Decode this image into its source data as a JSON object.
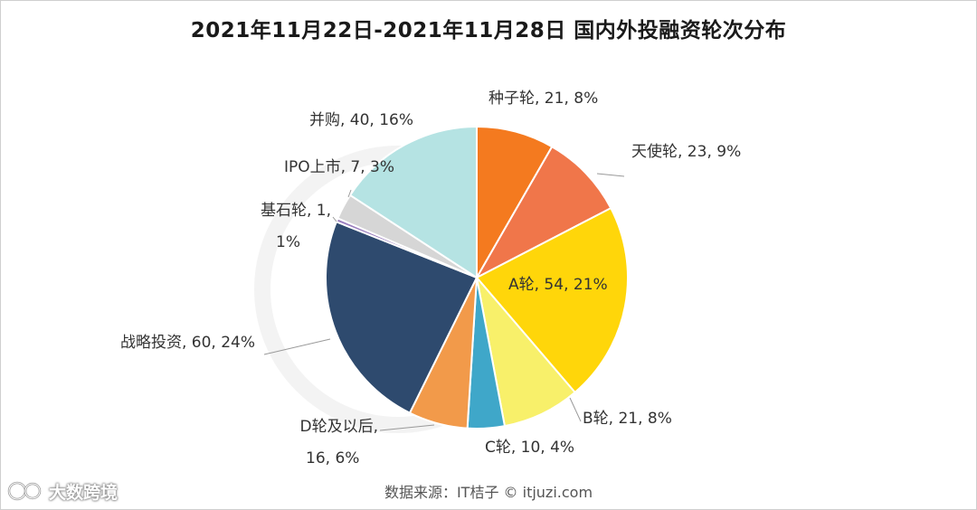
{
  "chart_data": {
    "type": "pie",
    "title": "2021年11月22日-2021年11月28日 国内外投融资轮次分布",
    "slices": [
      {
        "label": "种子轮, 21, 8%",
        "value": 21,
        "color": "#F47A1F"
      },
      {
        "label": "天使轮, 23, 9%",
        "value": 23,
        "color": "#F0764A"
      },
      {
        "label": "A轮, 54, 21%",
        "value": 54,
        "color": "#FFD60A"
      },
      {
        "label": "B轮, 21, 8%",
        "value": 21,
        "color": "#F8F06A"
      },
      {
        "label": "C轮, 10, 4%",
        "value": 10,
        "color": "#3FA7C9"
      },
      {
        "label": "D轮及以后,\n16, 6%",
        "value": 16,
        "color": "#F29A4A"
      },
      {
        "label": "战略投资, 60, 24%",
        "value": 60,
        "color": "#2E4A6E"
      },
      {
        "label": "基石轮, 1,\n1%",
        "value": 1,
        "color": "#9B7FBF"
      },
      {
        "label": "IPO上市, 7, 3%",
        "value": 7,
        "color": "#D6D6D6"
      },
      {
        "label": "并购, 40, 16%",
        "value": 40,
        "color": "#B5E3E3"
      }
    ]
  },
  "footer": {
    "source": "数据来源：IT桔子 © itjuzi.com",
    "brand": "大数跨境"
  }
}
